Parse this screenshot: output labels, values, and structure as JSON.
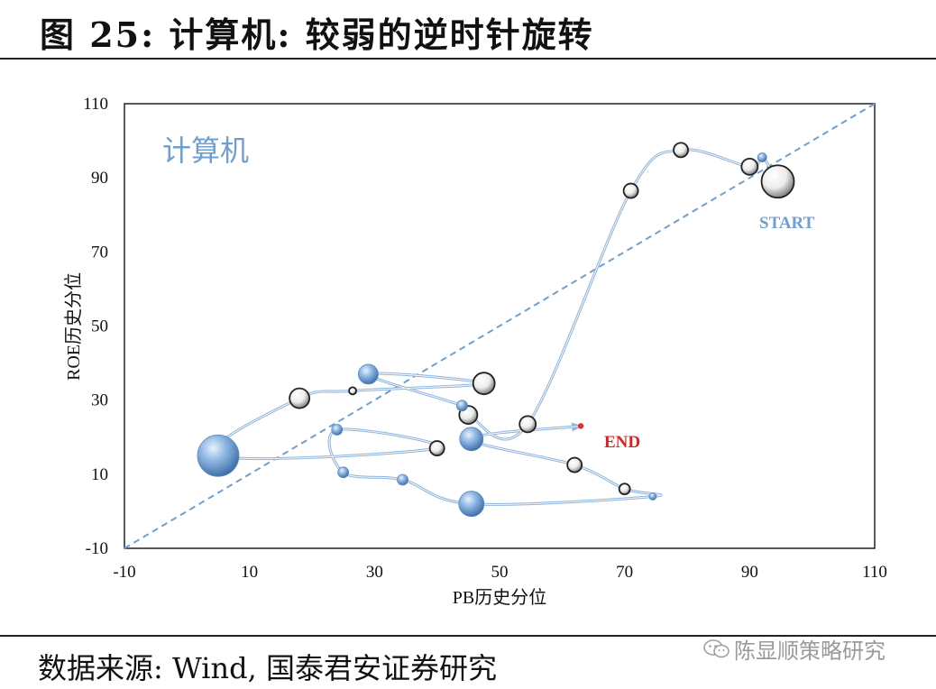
{
  "figure_title": "图 25:   计算机: 较弱的逆时针旋转",
  "source_text": "数据来源: Wind, 国泰君安证券研究",
  "watermark_text": "陈显顺策略研究",
  "watermark_icon": "wechat-icon",
  "colors": {
    "path": "#8fb4dc",
    "diagonal": "#6f9fd1",
    "panel_label": "#6f9fd1",
    "start_label": "#6f9fd1",
    "end_label": "#e02020",
    "end_marker": "#e03030",
    "bubble_white": "#ffffff",
    "bubble_blue": "#6a98cf"
  },
  "chart_data": {
    "type": "scatter",
    "panel_label": "计算机",
    "xlabel": "PB历史分位",
    "ylabel": "ROE历史分位",
    "xlim": [
      -10,
      110
    ],
    "ylim": [
      -10,
      110
    ],
    "xticks": [
      -10,
      10,
      30,
      50,
      70,
      90,
      110
    ],
    "yticks": [
      -10,
      10,
      30,
      50,
      70,
      90,
      110
    ],
    "grid": false,
    "reference_line": "y = x",
    "start_label": "START",
    "end_label": "END",
    "points": [
      {
        "x": 94.5,
        "y": 89,
        "size": 18,
        "style": "white"
      },
      {
        "x": 92,
        "y": 95.5,
        "size": 5,
        "style": "blue"
      },
      {
        "x": 90,
        "y": 93,
        "size": 9,
        "style": "white"
      },
      {
        "x": 79,
        "y": 97.5,
        "size": 8,
        "style": "white"
      },
      {
        "x": 71,
        "y": 86.5,
        "size": 8,
        "style": "white"
      },
      {
        "x": 54.5,
        "y": 23.5,
        "size": 9,
        "style": "white"
      },
      {
        "x": 45,
        "y": 26,
        "size": 10,
        "style": "white"
      },
      {
        "x": 44,
        "y": 28.5,
        "size": 6,
        "style": "blue"
      },
      {
        "x": 29,
        "y": 37,
        "size": 11,
        "style": "blue"
      },
      {
        "x": 47.5,
        "y": 34.5,
        "size": 12,
        "style": "white"
      },
      {
        "x": 26.5,
        "y": 32.5,
        "size": 4,
        "style": "white"
      },
      {
        "x": 18,
        "y": 30.5,
        "size": 11,
        "style": "white"
      },
      {
        "x": 5,
        "y": 15,
        "size": 23,
        "style": "blue"
      },
      {
        "x": 40,
        "y": 17,
        "size": 8,
        "style": "white"
      },
      {
        "x": 24,
        "y": 22,
        "size": 6,
        "style": "blue"
      },
      {
        "x": 25,
        "y": 10.5,
        "size": 6,
        "style": "blue"
      },
      {
        "x": 34.5,
        "y": 8.5,
        "size": 6,
        "style": "blue"
      },
      {
        "x": 45.5,
        "y": 2,
        "size": 14,
        "style": "blue"
      },
      {
        "x": 74.5,
        "y": 4,
        "size": 4,
        "style": "blue"
      },
      {
        "x": 70,
        "y": 6,
        "size": 6,
        "style": "white"
      },
      {
        "x": 62,
        "y": 12.5,
        "size": 8,
        "style": "white"
      },
      {
        "x": 45.5,
        "y": 19.5,
        "size": 13,
        "style": "blue"
      },
      {
        "x": 63,
        "y": 23,
        "size": 3,
        "style": "end"
      }
    ]
  }
}
